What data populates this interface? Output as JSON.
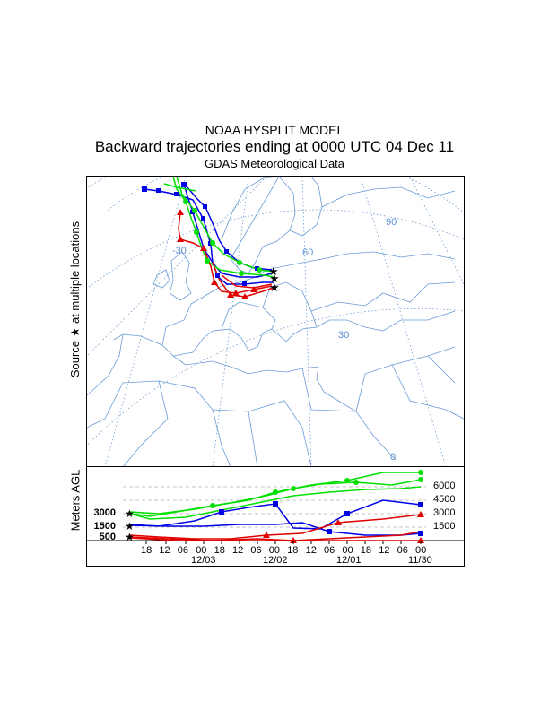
{
  "titles": {
    "line1": "NOAA HYSPLIT MODEL",
    "line2": "Backward trajectories ending at 0000 UTC 04 Dec 11",
    "line3": "GDAS Meteorological Data"
  },
  "map": {
    "ylabel": "Source ★ at multiple locations",
    "lat_labels": [
      "90",
      "60",
      "30"
    ],
    "lon_labels": [
      "-30",
      "60",
      "0"
    ]
  },
  "profile": {
    "ylabel": "Meters AGL",
    "source_heights": [
      "3000",
      "1500",
      "500"
    ],
    "right_heights": [
      "6000",
      "4500",
      "3000",
      "1500"
    ],
    "x_ticks": [
      "18",
      "12",
      "06",
      "00",
      "18",
      "12",
      "06",
      "00",
      "18",
      "12",
      "06",
      "00",
      "18",
      "12",
      "06",
      "00"
    ],
    "date_labels": [
      "12/03",
      "12/02",
      "12/01",
      "11/30"
    ]
  },
  "colors": {
    "red": "#e00000",
    "blue": "#0000e6",
    "green": "#00e000",
    "grid": "#5b8fd0"
  }
}
